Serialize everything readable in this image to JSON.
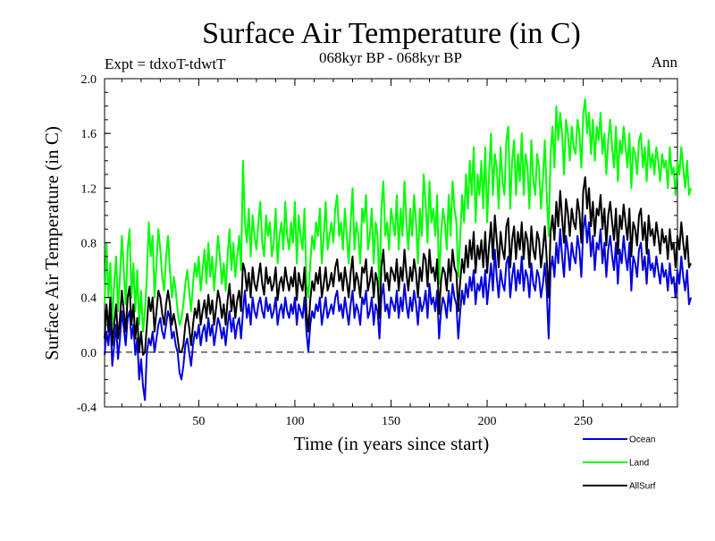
{
  "chart_data": {
    "type": "line",
    "title": "Surface Air Temperature (in C)",
    "subtitle_left": "Expt = tdxoT-tdwtT",
    "subtitle_center": "068kyr BP - 068kyr BP",
    "subtitle_right": "Ann",
    "xlabel": "Time (in years since start)",
    "ylabel": "Surface Air Temperature (in C)",
    "xlim": [
      1,
      299
    ],
    "ylim": [
      -0.4,
      2.0
    ],
    "x_ticks": [
      50,
      100,
      150,
      200,
      250
    ],
    "y_ticks": [
      "-0.4",
      "0.0",
      "0.4",
      "0.8",
      "1.2",
      "1.6",
      "2.0"
    ],
    "reference_line": {
      "y": 0.0,
      "style": "dashed"
    },
    "legend_position": "bottom-right",
    "x_start": 1,
    "x_step": 1,
    "series": [
      {
        "name": "Ocean",
        "color": "#0000dd",
        "values": [
          -0.02,
          0.15,
          0.05,
          0.25,
          -0.1,
          0.05,
          0.2,
          -0.05,
          0.1,
          0.3,
          0.18,
          0.05,
          0.25,
          0.3,
          0.1,
          0.2,
          -0.02,
          0.1,
          -0.2,
          -0.05,
          -0.25,
          -0.35,
          0.0,
          0.1,
          0.05,
          0.15,
          0.0,
          0.1,
          0.2,
          0.25,
          0.15,
          0.1,
          0.2,
          0.3,
          0.25,
          0.1,
          0.15,
          0.05,
          0.0,
          -0.15,
          -0.2,
          -0.1,
          0.05,
          0.1,
          0.0,
          -0.1,
          0.05,
          0.15,
          0.1,
          0.2,
          0.05,
          0.15,
          0.2,
          0.08,
          0.25,
          0.12,
          0.2,
          0.05,
          0.15,
          0.25,
          0.2,
          0.1,
          0.18,
          0.05,
          0.2,
          0.3,
          0.15,
          0.25,
          0.1,
          0.2,
          0.25,
          0.1,
          0.3,
          0.45,
          0.25,
          0.35,
          0.2,
          0.4,
          0.3,
          0.25,
          0.35,
          0.4,
          0.3,
          0.25,
          0.4,
          0.3,
          0.35,
          0.25,
          0.3,
          0.4,
          0.2,
          0.3,
          0.35,
          0.25,
          0.4,
          0.3,
          0.25,
          0.35,
          0.28,
          0.4,
          0.2,
          0.35,
          0.3,
          0.25,
          0.4,
          0.15,
          0.0,
          0.2,
          0.3,
          0.25,
          0.35,
          0.3,
          0.4,
          0.2,
          0.3,
          0.4,
          0.25,
          0.3,
          0.35,
          0.28,
          0.4,
          0.45,
          0.3,
          0.35,
          0.25,
          0.4,
          0.3,
          0.2,
          0.35,
          0.45,
          0.25,
          0.35,
          0.3,
          0.2,
          0.4,
          0.35,
          0.45,
          0.25,
          0.3,
          0.4,
          0.2,
          0.35,
          0.3,
          0.1,
          0.4,
          0.5,
          0.3,
          0.35,
          0.25,
          0.4,
          0.35,
          0.3,
          0.45,
          0.25,
          0.4,
          0.3,
          0.5,
          0.35,
          0.25,
          0.4,
          0.3,
          0.45,
          0.35,
          0.2,
          0.4,
          0.3,
          0.35,
          0.45,
          0.25,
          0.5,
          0.35,
          0.4,
          0.3,
          0.45,
          0.1,
          0.3,
          0.4,
          0.35,
          0.25,
          0.45,
          0.3,
          0.5,
          0.4,
          0.35,
          0.1,
          0.3,
          0.45,
          0.35,
          0.5,
          0.4,
          0.55,
          0.45,
          0.6,
          0.35,
          0.5,
          0.45,
          0.55,
          0.4,
          0.6,
          0.35,
          0.5,
          0.65,
          0.45,
          0.75,
          0.55,
          0.4,
          0.6,
          0.5,
          0.45,
          0.65,
          0.7,
          0.4,
          0.55,
          0.65,
          0.45,
          0.6,
          0.5,
          0.7,
          0.45,
          0.6,
          0.55,
          0.4,
          0.65,
          0.5,
          0.45,
          0.6,
          0.55,
          0.4,
          0.5,
          0.65,
          0.45,
          0.1,
          0.6,
          0.7,
          0.55,
          0.8,
          0.65,
          0.9,
          0.7,
          0.55,
          0.85,
          0.75,
          0.6,
          0.8,
          0.7,
          0.65,
          0.85,
          0.75,
          0.55,
          0.9,
          1.0,
          0.8,
          0.95,
          0.7,
          0.85,
          0.6,
          0.8,
          0.75,
          0.9,
          0.65,
          0.8,
          0.55,
          0.75,
          0.85,
          0.7,
          0.6,
          0.8,
          0.5,
          0.75,
          0.65,
          0.85,
          0.7,
          0.6,
          0.8,
          0.45,
          0.7,
          0.65,
          0.55,
          0.75,
          0.8,
          0.6,
          0.7,
          0.5,
          0.75,
          0.6,
          0.65,
          0.55,
          0.7,
          0.6,
          0.5,
          0.65,
          0.55,
          0.6,
          0.45,
          0.65,
          0.5,
          0.55,
          0.4,
          0.6,
          0.5,
          0.7,
          0.55,
          0.45,
          0.6,
          0.35,
          0.4
        ]
      },
      {
        "name": "Land",
        "color": "#00ff00",
        "values": [
          0.35,
          0.8,
          0.4,
          0.65,
          0.2,
          0.5,
          0.7,
          0.3,
          0.55,
          0.85,
          0.6,
          0.35,
          0.75,
          0.9,
          0.4,
          0.65,
          0.3,
          0.6,
          0.2,
          0.45,
          0.15,
          0.3,
          0.55,
          0.95,
          0.7,
          0.85,
          0.4,
          0.65,
          0.9,
          0.75,
          0.55,
          0.45,
          0.7,
          0.85,
          0.6,
          0.4,
          0.55,
          0.45,
          0.3,
          0.2,
          0.25,
          0.35,
          0.5,
          0.6,
          0.45,
          0.3,
          0.5,
          0.65,
          0.55,
          0.7,
          0.45,
          0.6,
          0.75,
          0.5,
          0.8,
          0.55,
          0.7,
          0.45,
          0.65,
          0.85,
          0.7,
          0.5,
          0.65,
          0.45,
          0.7,
          0.9,
          0.6,
          0.8,
          0.55,
          0.7,
          0.85,
          0.6,
          1.4,
          0.95,
          0.8,
          1.05,
          0.7,
          1.0,
          0.85,
          0.75,
          0.95,
          1.1,
          0.8,
          0.7,
          1.0,
          0.85,
          0.95,
          0.7,
          0.8,
          1.05,
          0.65,
          0.85,
          0.95,
          0.75,
          1.1,
          0.85,
          0.75,
          0.95,
          0.8,
          1.1,
          0.65,
          1.0,
          0.85,
          0.75,
          1.05,
          0.5,
          0.4,
          0.65,
          0.85,
          0.75,
          0.95,
          0.85,
          1.05,
          0.65,
          0.85,
          1.1,
          0.75,
          0.85,
          0.95,
          0.8,
          1.05,
          1.15,
          0.85,
          0.95,
          0.75,
          1.05,
          0.85,
          0.65,
          0.95,
          1.2,
          0.75,
          0.95,
          0.85,
          0.65,
          1.05,
          0.95,
          1.15,
          0.75,
          0.85,
          1.05,
          0.65,
          0.95,
          0.85,
          0.45,
          1.05,
          1.25,
          0.85,
          0.95,
          0.75,
          1.05,
          0.95,
          0.85,
          1.15,
          0.75,
          1.05,
          0.85,
          1.25,
          0.95,
          0.75,
          1.05,
          0.85,
          1.15,
          0.95,
          0.65,
          1.05,
          0.85,
          1.3,
          1.1,
          0.8,
          1.25,
          0.95,
          1.05,
          0.85,
          1.15,
          0.5,
          0.85,
          1.05,
          0.95,
          0.75,
          1.15,
          0.85,
          1.25,
          1.05,
          0.95,
          0.55,
          0.85,
          1.15,
          0.95,
          1.3,
          1.05,
          1.4,
          1.15,
          1.5,
          0.95,
          1.3,
          1.15,
          1.4,
          1.05,
          1.5,
          0.95,
          1.3,
          1.6,
          1.15,
          1.45,
          1.35,
          1.05,
          1.5,
          1.25,
          1.15,
          1.55,
          1.65,
          1.05,
          1.4,
          1.55,
          1.15,
          1.45,
          1.25,
          1.6,
          1.15,
          1.45,
          1.35,
          1.05,
          1.55,
          1.25,
          1.15,
          1.45,
          1.35,
          1.05,
          1.25,
          1.55,
          1.15,
          0.85,
          1.45,
          1.65,
          1.35,
          1.8,
          1.55,
          1.75,
          1.6,
          1.3,
          1.7,
          1.6,
          1.4,
          1.65,
          1.5,
          1.45,
          1.7,
          1.6,
          1.35,
          1.75,
          1.85,
          1.6,
          1.75,
          1.45,
          1.7,
          1.4,
          1.65,
          1.55,
          1.75,
          1.45,
          1.6,
          1.3,
          1.55,
          1.7,
          1.5,
          1.35,
          1.65,
          1.25,
          1.55,
          1.45,
          1.65,
          1.5,
          1.35,
          1.6,
          1.2,
          1.5,
          1.45,
          1.3,
          1.55,
          1.6,
          1.35,
          1.5,
          1.25,
          1.55,
          1.35,
          1.45,
          1.3,
          1.5,
          1.4,
          1.25,
          1.45,
          1.35,
          1.4,
          1.2,
          1.5,
          1.3,
          1.35,
          1.15,
          1.4,
          1.3,
          1.5,
          1.35,
          1.2,
          1.4,
          1.15,
          1.2
        ]
      },
      {
        "name": "AllSurf",
        "color": "#000000",
        "values": [
          0.1,
          0.35,
          0.15,
          0.4,
          0.05,
          0.2,
          0.35,
          0.1,
          0.25,
          0.45,
          0.3,
          0.15,
          0.4,
          0.48,
          0.2,
          0.35,
          0.1,
          0.25,
          0.0,
          0.15,
          -0.02,
          0.0,
          0.2,
          0.4,
          0.3,
          0.4,
          0.15,
          0.3,
          0.45,
          0.4,
          0.28,
          0.2,
          0.35,
          0.45,
          0.35,
          0.2,
          0.28,
          0.2,
          0.1,
          0.0,
          0.0,
          0.05,
          0.2,
          0.28,
          0.18,
          0.05,
          0.2,
          0.32,
          0.25,
          0.38,
          0.2,
          0.3,
          0.38,
          0.25,
          0.42,
          0.28,
          0.38,
          0.2,
          0.32,
          0.45,
          0.38,
          0.25,
          0.35,
          0.2,
          0.38,
          0.5,
          0.3,
          0.42,
          0.25,
          0.38,
          0.45,
          0.3,
          0.65,
          0.6,
          0.45,
          0.58,
          0.4,
          0.62,
          0.5,
          0.45,
          0.55,
          0.65,
          0.5,
          0.42,
          0.62,
          0.5,
          0.55,
          0.45,
          0.5,
          0.62,
          0.38,
          0.5,
          0.55,
          0.45,
          0.62,
          0.52,
          0.45,
          0.55,
          0.48,
          0.62,
          0.38,
          0.58,
          0.5,
          0.45,
          0.62,
          0.3,
          0.15,
          0.38,
          0.52,
          0.45,
          0.58,
          0.5,
          0.62,
          0.4,
          0.5,
          0.62,
          0.45,
          0.5,
          0.58,
          0.48,
          0.62,
          0.68,
          0.52,
          0.58,
          0.45,
          0.62,
          0.52,
          0.4,
          0.58,
          0.7,
          0.45,
          0.58,
          0.52,
          0.4,
          0.62,
          0.58,
          0.68,
          0.45,
          0.52,
          0.62,
          0.4,
          0.58,
          0.52,
          0.25,
          0.62,
          0.75,
          0.52,
          0.58,
          0.45,
          0.62,
          0.58,
          0.52,
          0.68,
          0.45,
          0.62,
          0.52,
          0.75,
          0.58,
          0.45,
          0.62,
          0.52,
          0.68,
          0.58,
          0.4,
          0.62,
          0.52,
          0.72,
          0.68,
          0.48,
          0.75,
          0.58,
          0.62,
          0.52,
          0.68,
          0.28,
          0.52,
          0.62,
          0.58,
          0.45,
          0.68,
          0.52,
          0.75,
          0.62,
          0.58,
          0.3,
          0.52,
          0.68,
          0.58,
          0.78,
          0.62,
          0.82,
          0.68,
          0.88,
          0.58,
          0.78,
          0.68,
          0.82,
          0.62,
          0.88,
          0.58,
          0.78,
          0.95,
          0.68,
          1.0,
          0.82,
          0.62,
          0.88,
          0.75,
          0.68,
          0.92,
          0.98,
          0.62,
          0.82,
          0.92,
          0.68,
          0.88,
          0.75,
          0.95,
          0.68,
          0.88,
          0.82,
          0.62,
          0.92,
          0.75,
          0.68,
          0.88,
          0.82,
          0.62,
          0.75,
          0.92,
          0.68,
          0.4,
          0.88,
          1.0,
          0.82,
          1.1,
          0.92,
          1.18,
          0.98,
          0.8,
          1.12,
          1.02,
          0.85,
          1.05,
          0.95,
          0.9,
          1.12,
          1.02,
          0.8,
          1.18,
          1.28,
          1.05,
          1.2,
          0.92,
          1.1,
          0.85,
          1.05,
          1.0,
          1.15,
          0.9,
          1.05,
          0.78,
          1.0,
          1.1,
          0.95,
          0.82,
          1.05,
          0.72,
          1.0,
          0.9,
          1.08,
          0.95,
          0.82,
          1.05,
          0.7,
          0.95,
          0.9,
          0.78,
          1.0,
          1.05,
          0.82,
          0.95,
          0.72,
          1.0,
          0.85,
          0.9,
          0.78,
          0.95,
          0.85,
          0.72,
          0.9,
          0.8,
          0.85,
          0.68,
          0.9,
          0.75,
          0.8,
          0.62,
          0.85,
          0.75,
          0.95,
          0.8,
          0.68,
          0.85,
          0.62,
          0.65
        ]
      }
    ]
  }
}
